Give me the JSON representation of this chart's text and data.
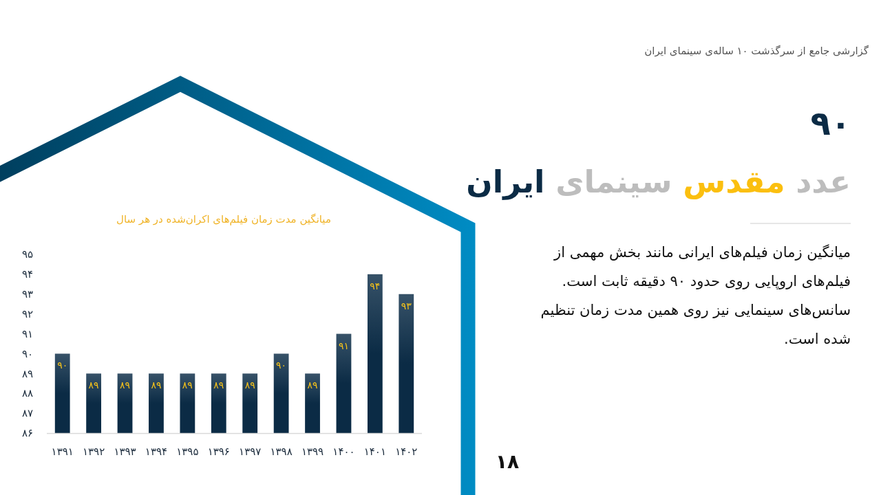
{
  "chart_data": {
    "type": "bar",
    "title": "میانگین مدت زمان فیلم‌های اکران‌شده در هر سال",
    "categories": [
      "۱۳۹۱",
      "۱۳۹۲",
      "۱۳۹۳",
      "۱۳۹۴",
      "۱۳۹۵",
      "۱۳۹۶",
      "۱۳۹۷",
      "۱۳۹۸",
      "۱۳۹۹",
      "۱۴۰۰",
      "۱۴۰۱",
      "۱۴۰۲"
    ],
    "values": [
      90,
      89,
      89,
      89,
      89,
      89,
      89,
      90,
      89,
      91,
      94,
      93
    ],
    "value_labels": [
      "۹۰",
      "۸۹",
      "۸۹",
      "۸۹",
      "۸۹",
      "۸۹",
      "۸۹",
      "۹۰",
      "۸۹",
      "۹۱",
      "۹۴",
      "۹۳"
    ],
    "color": "#0b2b45",
    "ylim": [
      86,
      95
    ],
    "yticks": [
      {
        "value": 86,
        "label": "۸۶"
      },
      {
        "value": 87,
        "label": "۸۷"
      },
      {
        "value": 88,
        "label": "۸۸"
      },
      {
        "value": 89,
        "label": "۸۹"
      },
      {
        "value": 90,
        "label": "۹۰"
      },
      {
        "value": 91,
        "label": "۹۱"
      },
      {
        "value": 92,
        "label": "۹۲"
      },
      {
        "value": 93,
        "label": "۹۳"
      },
      {
        "value": 94,
        "label": "۹۴"
      },
      {
        "value": 95,
        "label": "۹۵"
      }
    ],
    "annotations": [
      "گزارشی جامع از سرگذشت ۱۰ ساله‌ی سینمای ایران",
      "۹۰",
      "عدد مقدس سینمای ایران",
      "میانگین زمان فیلم‌های ایرانی مانند بخش مهمی از فیلم‌های اروپایی روی حدود ۹۰ دقیقه ثابت است. سانس‌های سینمایی نیز روی همین مدت زمان تنظیم شده است.",
      "۱۸"
    ]
  }
}
